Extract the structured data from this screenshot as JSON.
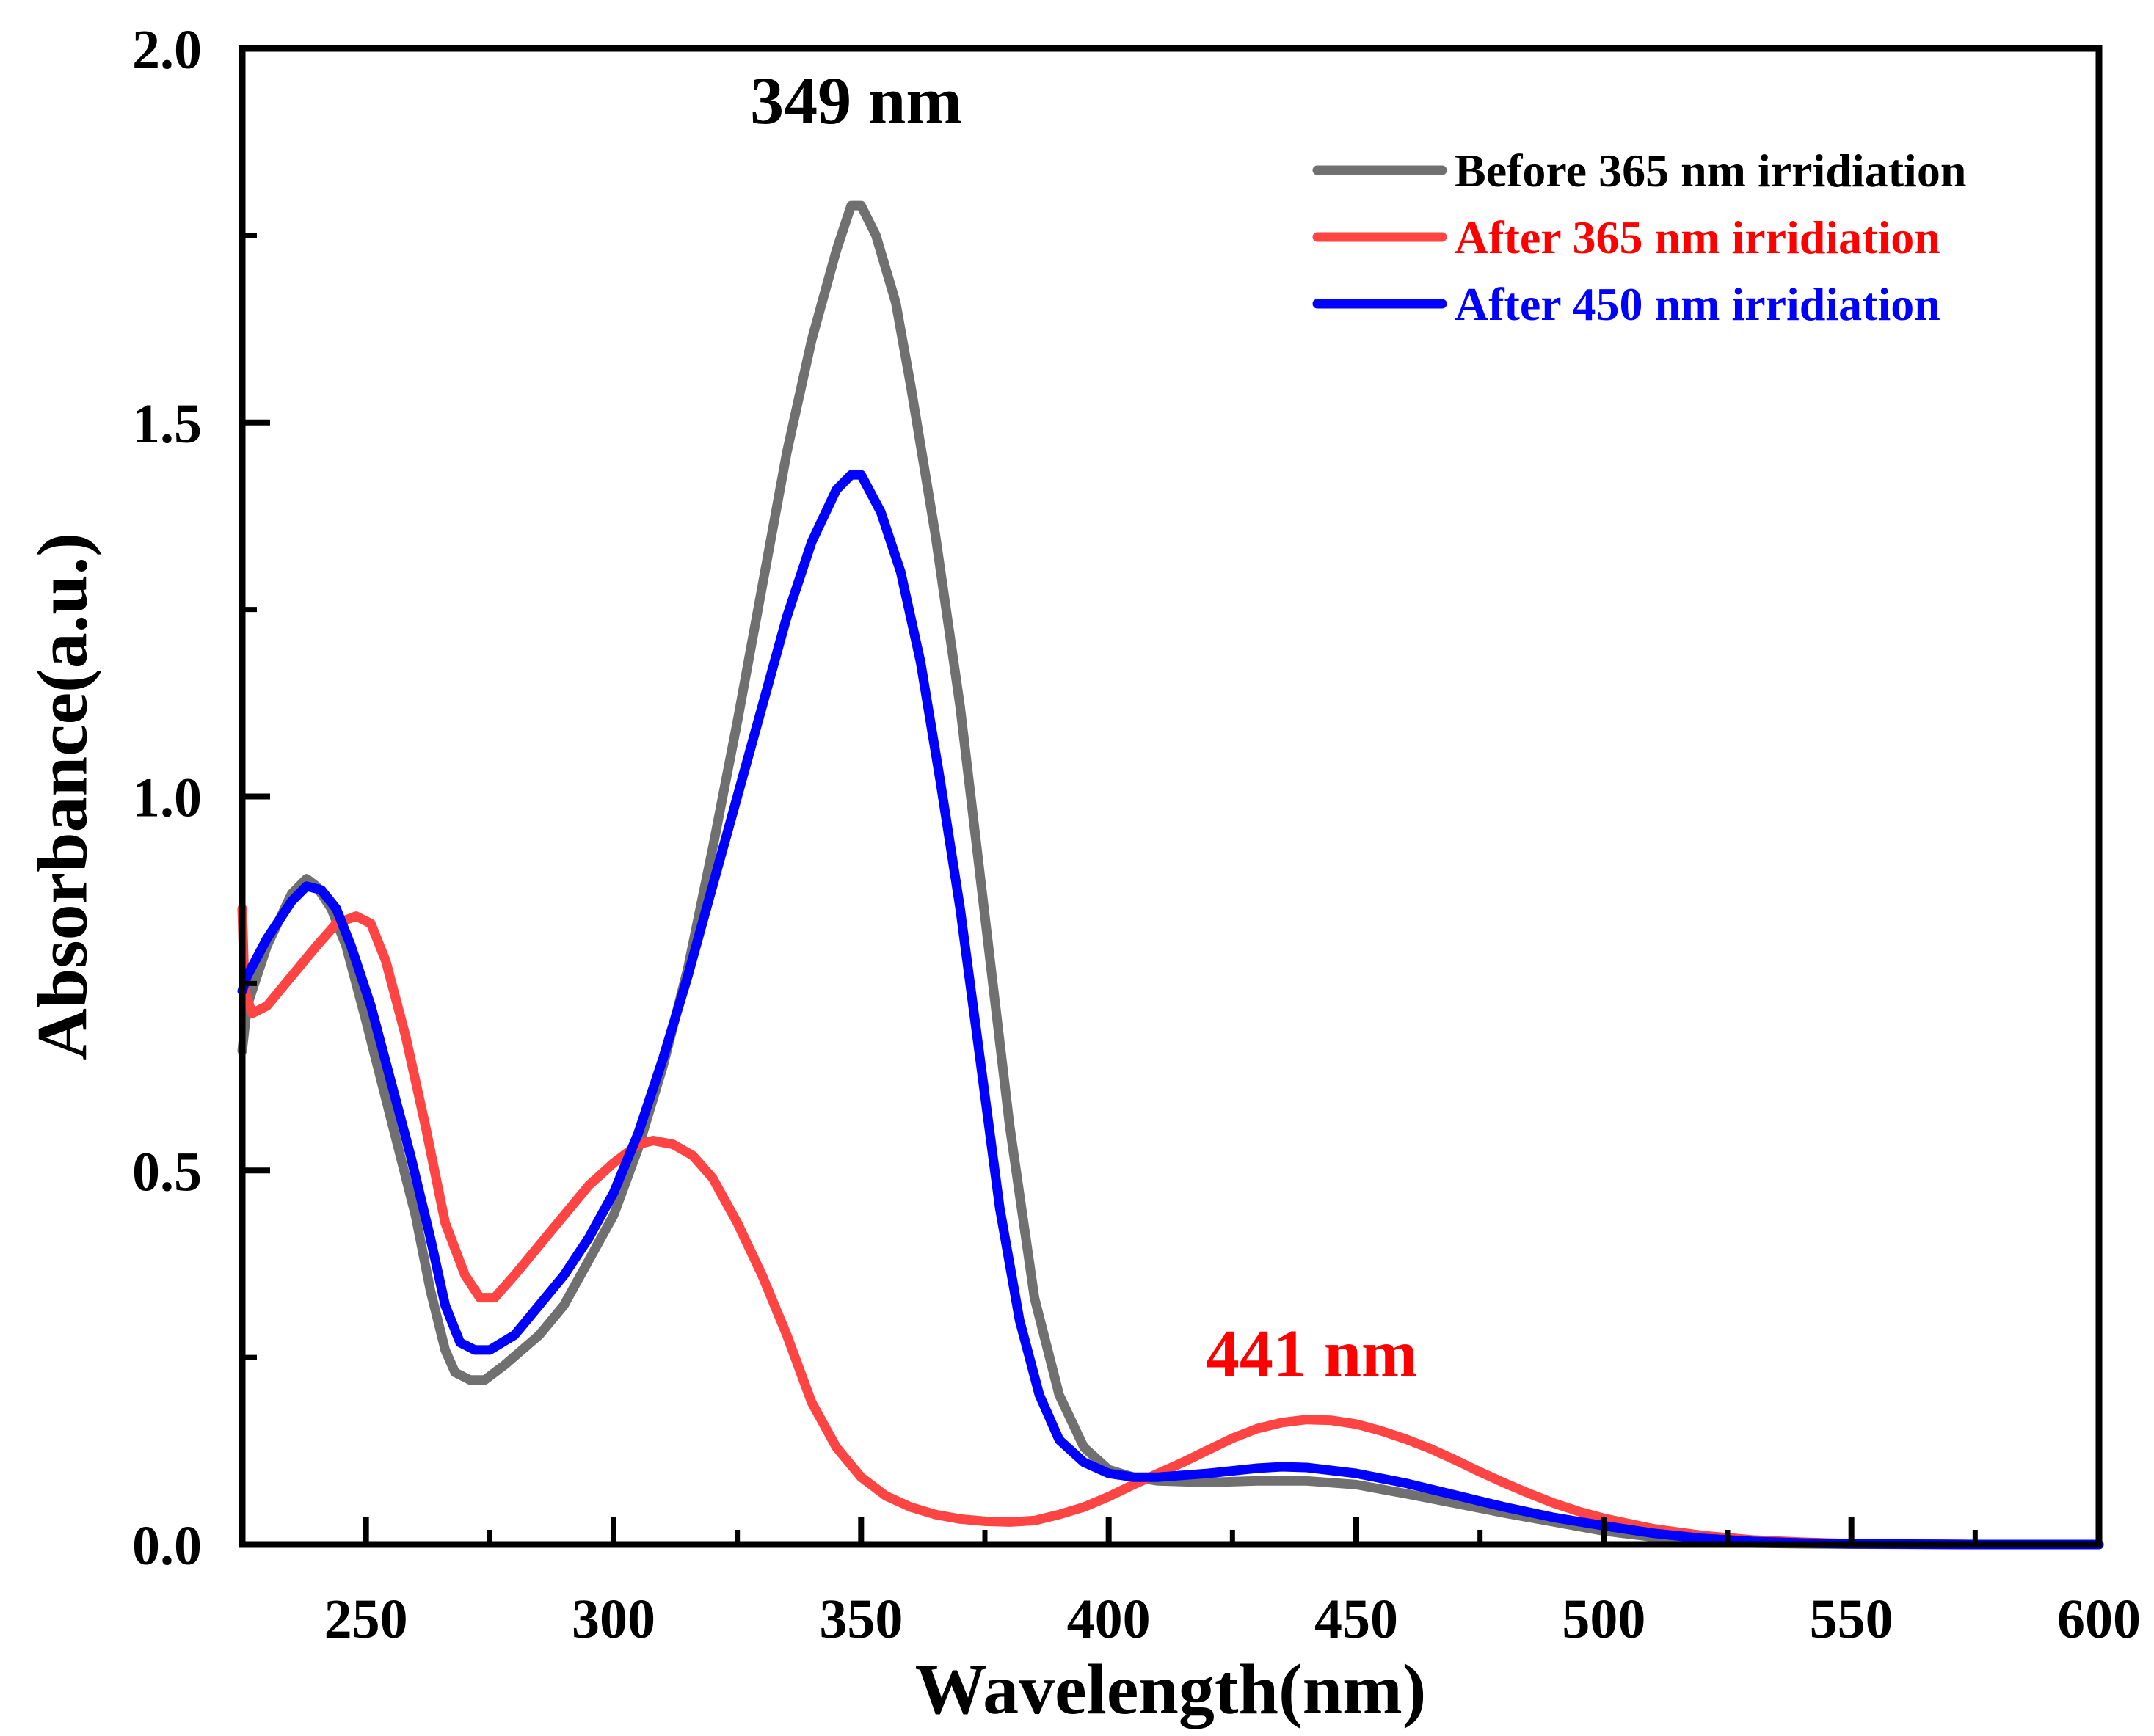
{
  "chart_data": {
    "type": "line",
    "xlabel": "Wavelength(nm)",
    "ylabel": "Absorbance(a.u.)",
    "xlim": [
      225,
      600
    ],
    "ylim": [
      0.0,
      2.0
    ],
    "xticks": [
      {
        "value": 250,
        "label": "250"
      },
      {
        "value": 300,
        "label": "300"
      },
      {
        "value": 350,
        "label": "350"
      },
      {
        "value": 400,
        "label": "400"
      },
      {
        "value": 450,
        "label": "450"
      },
      {
        "value": 500,
        "label": "500"
      },
      {
        "value": 550,
        "label": "550"
      },
      {
        "value": 600,
        "label": "600"
      }
    ],
    "yticks": [
      {
        "value": 0.0,
        "label": "0.0"
      },
      {
        "value": 0.5,
        "label": "0.5"
      },
      {
        "value": 1.0,
        "label": "1.0"
      },
      {
        "value": 1.5,
        "label": "1.5"
      },
      {
        "value": 2.0,
        "label": "2.0"
      }
    ],
    "x_minor_ticks": [
      275,
      325,
      375,
      425,
      475,
      525,
      575
    ],
    "y_minor_ticks": [
      0.25,
      0.75,
      1.25,
      1.75
    ],
    "grid": false,
    "legend_position": "top-right",
    "series": [
      {
        "name": "Before 365 nm irridiation",
        "color": "#707070",
        "points": [
          [
            225,
            0.66
          ],
          [
            226,
            0.72
          ],
          [
            230,
            0.8
          ],
          [
            235,
            0.87
          ],
          [
            238,
            0.89
          ],
          [
            240,
            0.88
          ],
          [
            243,
            0.85
          ],
          [
            246,
            0.8
          ],
          [
            250,
            0.7
          ],
          [
            255,
            0.57
          ],
          [
            260,
            0.44
          ],
          [
            263,
            0.34
          ],
          [
            266,
            0.26
          ],
          [
            268,
            0.23
          ],
          [
            271,
            0.22
          ],
          [
            274,
            0.22
          ],
          [
            278,
            0.24
          ],
          [
            285,
            0.28
          ],
          [
            290,
            0.32
          ],
          [
            295,
            0.38
          ],
          [
            300,
            0.44
          ],
          [
            305,
            0.53
          ],
          [
            310,
            0.64
          ],
          [
            315,
            0.77
          ],
          [
            320,
            0.93
          ],
          [
            325,
            1.1
          ],
          [
            330,
            1.28
          ],
          [
            335,
            1.46
          ],
          [
            340,
            1.61
          ],
          [
            345,
            1.73
          ],
          [
            348,
            1.79
          ],
          [
            350,
            1.79
          ],
          [
            353,
            1.75
          ],
          [
            357,
            1.66
          ],
          [
            360,
            1.55
          ],
          [
            365,
            1.35
          ],
          [
            370,
            1.12
          ],
          [
            375,
            0.84
          ],
          [
            380,
            0.56
          ],
          [
            385,
            0.33
          ],
          [
            390,
            0.2
          ],
          [
            395,
            0.13
          ],
          [
            400,
            0.1
          ],
          [
            405,
            0.09
          ],
          [
            410,
            0.085
          ],
          [
            420,
            0.083
          ],
          [
            430,
            0.085
          ],
          [
            440,
            0.085
          ],
          [
            450,
            0.08
          ],
          [
            460,
            0.068
          ],
          [
            470,
            0.055
          ],
          [
            480,
            0.042
          ],
          [
            490,
            0.03
          ],
          [
            500,
            0.018
          ],
          [
            510,
            0.01
          ],
          [
            520,
            0.005
          ],
          [
            530,
            0.002
          ],
          [
            540,
            0.001
          ],
          [
            550,
            0.0005
          ],
          [
            575,
            0.0
          ],
          [
            600,
            0.0
          ]
        ]
      },
      {
        "name": "After 365 nm irridiation",
        "color": "#ff4444",
        "points": [
          [
            225,
            0.85
          ],
          [
            225.5,
            0.74
          ],
          [
            227,
            0.71
          ],
          [
            230,
            0.72
          ],
          [
            235,
            0.76
          ],
          [
            240,
            0.8
          ],
          [
            244,
            0.83
          ],
          [
            248,
            0.84
          ],
          [
            251,
            0.83
          ],
          [
            254,
            0.78
          ],
          [
            258,
            0.68
          ],
          [
            262,
            0.56
          ],
          [
            266,
            0.43
          ],
          [
            270,
            0.36
          ],
          [
            273,
            0.33
          ],
          [
            276,
            0.33
          ],
          [
            280,
            0.36
          ],
          [
            285,
            0.4
          ],
          [
            290,
            0.44
          ],
          [
            295,
            0.48
          ],
          [
            300,
            0.51
          ],
          [
            305,
            0.535
          ],
          [
            308,
            0.54
          ],
          [
            312,
            0.535
          ],
          [
            316,
            0.52
          ],
          [
            320,
            0.49
          ],
          [
            325,
            0.43
          ],
          [
            330,
            0.36
          ],
          [
            335,
            0.28
          ],
          [
            340,
            0.19
          ],
          [
            345,
            0.13
          ],
          [
            350,
            0.09
          ],
          [
            355,
            0.065
          ],
          [
            360,
            0.05
          ],
          [
            365,
            0.04
          ],
          [
            370,
            0.034
          ],
          [
            375,
            0.031
          ],
          [
            380,
            0.03
          ],
          [
            385,
            0.032
          ],
          [
            390,
            0.04
          ],
          [
            395,
            0.05
          ],
          [
            400,
            0.064
          ],
          [
            405,
            0.08
          ],
          [
            410,
            0.095
          ],
          [
            415,
            0.11
          ],
          [
            420,
            0.126
          ],
          [
            425,
            0.142
          ],
          [
            430,
            0.155
          ],
          [
            435,
            0.163
          ],
          [
            440,
            0.167
          ],
          [
            445,
            0.166
          ],
          [
            450,
            0.161
          ],
          [
            455,
            0.152
          ],
          [
            460,
            0.141
          ],
          [
            465,
            0.128
          ],
          [
            470,
            0.113
          ],
          [
            475,
            0.097
          ],
          [
            480,
            0.082
          ],
          [
            485,
            0.068
          ],
          [
            490,
            0.055
          ],
          [
            495,
            0.044
          ],
          [
            500,
            0.035
          ],
          [
            510,
            0.021
          ],
          [
            520,
            0.012
          ],
          [
            530,
            0.006
          ],
          [
            540,
            0.003
          ],
          [
            550,
            0.001
          ],
          [
            575,
            0.0
          ],
          [
            600,
            0.0
          ]
        ]
      },
      {
        "name": "After 450 nm irridiation",
        "color": "#0000ff",
        "points": [
          [
            225,
            0.74
          ],
          [
            226,
            0.76
          ],
          [
            230,
            0.81
          ],
          [
            235,
            0.86
          ],
          [
            238,
            0.88
          ],
          [
            241,
            0.875
          ],
          [
            244,
            0.85
          ],
          [
            247,
            0.8
          ],
          [
            251,
            0.72
          ],
          [
            255,
            0.62
          ],
          [
            259,
            0.52
          ],
          [
            263,
            0.41
          ],
          [
            266,
            0.32
          ],
          [
            269,
            0.27
          ],
          [
            272,
            0.26
          ],
          [
            275,
            0.26
          ],
          [
            280,
            0.28
          ],
          [
            285,
            0.32
          ],
          [
            290,
            0.36
          ],
          [
            295,
            0.41
          ],
          [
            300,
            0.47
          ],
          [
            305,
            0.55
          ],
          [
            310,
            0.65
          ],
          [
            315,
            0.76
          ],
          [
            320,
            0.88
          ],
          [
            325,
            1.0
          ],
          [
            330,
            1.12
          ],
          [
            335,
            1.24
          ],
          [
            340,
            1.34
          ],
          [
            345,
            1.41
          ],
          [
            348,
            1.43
          ],
          [
            350,
            1.43
          ],
          [
            354,
            1.38
          ],
          [
            358,
            1.3
          ],
          [
            362,
            1.18
          ],
          [
            366,
            1.02
          ],
          [
            370,
            0.85
          ],
          [
            374,
            0.65
          ],
          [
            378,
            0.45
          ],
          [
            382,
            0.3
          ],
          [
            386,
            0.2
          ],
          [
            390,
            0.14
          ],
          [
            395,
            0.11
          ],
          [
            400,
            0.095
          ],
          [
            405,
            0.09
          ],
          [
            410,
            0.09
          ],
          [
            420,
            0.095
          ],
          [
            430,
            0.102
          ],
          [
            435,
            0.104
          ],
          [
            440,
            0.103
          ],
          [
            450,
            0.095
          ],
          [
            460,
            0.082
          ],
          [
            470,
            0.066
          ],
          [
            480,
            0.05
          ],
          [
            490,
            0.036
          ],
          [
            500,
            0.025
          ],
          [
            510,
            0.015
          ],
          [
            520,
            0.008
          ],
          [
            530,
            0.004
          ],
          [
            540,
            0.002
          ],
          [
            550,
            0.001
          ],
          [
            575,
            0.0
          ],
          [
            600,
            0.0
          ]
        ]
      }
    ],
    "annotations": [
      {
        "text": "349 nm",
        "x": 349,
        "y": 1.9,
        "color": "#000000"
      },
      {
        "text": "441 nm",
        "x": 441,
        "y": 0.225,
        "color": "#ff0000"
      }
    ],
    "legend_text_colors": [
      "#000000",
      "#ff0000",
      "#0000ff"
    ]
  }
}
